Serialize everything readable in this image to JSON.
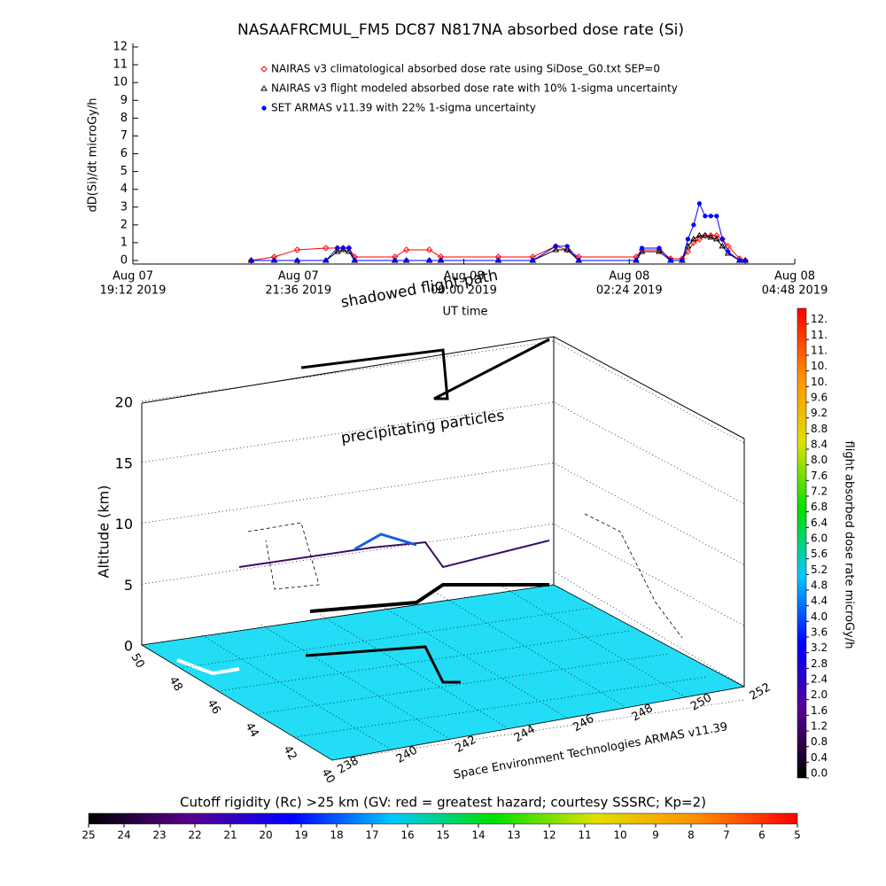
{
  "chart_data": [
    {
      "type": "line",
      "title": "NASAAFRCMUL_FM5 DC87 N817NA absorbed dose rate (Si)",
      "ylabel": "dD(Si)/dt microGy/h",
      "xlabel": "UT time",
      "xlim": [
        "2019-08-07T19:12",
        "2019-08-08T04:48"
      ],
      "xticks": [
        {
          "value": "2019-08-07T19:12",
          "label": [
            "Aug 07",
            "19:12 2019"
          ]
        },
        {
          "value": "2019-08-07T21:36",
          "label": [
            "Aug 07",
            "21:36 2019"
          ]
        },
        {
          "value": "2019-08-08T00:00",
          "label": [
            "Aug 08",
            "00:00 2019"
          ]
        },
        {
          "value": "2019-08-08T02:24",
          "label": [
            "Aug 08",
            "02:24 2019"
          ]
        },
        {
          "value": "2019-08-08T04:48",
          "label": [
            "Aug 08",
            "04:48 2019"
          ]
        }
      ],
      "ylim": [
        0,
        12
      ],
      "yticks": [
        0,
        1,
        2,
        3,
        4,
        5,
        6,
        7,
        8,
        9,
        10,
        11,
        12
      ],
      "x": [
        "2019-08-07T20:55",
        "2019-08-07T21:15",
        "2019-08-07T21:35",
        "2019-08-07T22:00",
        "2019-08-07T22:10",
        "2019-08-07T22:15",
        "2019-08-07T22:20",
        "2019-08-07T22:25",
        "2019-08-07T23:00",
        "2019-08-07T23:10",
        "2019-08-07T23:30",
        "2019-08-07T23:40",
        "2019-08-08T00:30",
        "2019-08-08T01:00",
        "2019-08-08T01:20",
        "2019-08-08T01:30",
        "2019-08-08T01:40",
        "2019-08-08T02:30",
        "2019-08-08T02:35",
        "2019-08-08T02:50",
        "2019-08-08T03:00",
        "2019-08-08T03:10",
        "2019-08-08T03:15",
        "2019-08-08T03:20",
        "2019-08-08T03:25",
        "2019-08-08T03:30",
        "2019-08-08T03:35",
        "2019-08-08T03:40",
        "2019-08-08T03:45",
        "2019-08-08T03:50",
        "2019-08-08T04:00",
        "2019-08-08T04:05"
      ],
      "series": [
        {
          "name": "NAIRAS v3 climatological absorbed dose rate using SiDose_G0.txt SEP=0",
          "color": "#ff0000",
          "marker": "diamond",
          "values": [
            0,
            0.2,
            0.6,
            0.7,
            0.7,
            0.7,
            0.7,
            0.2,
            0.2,
            0.6,
            0.6,
            0.2,
            0.2,
            0.2,
            0.8,
            0.6,
            0.2,
            0.2,
            0.6,
            0.6,
            0.1,
            0.1,
            0.5,
            1.0,
            1.2,
            1.4,
            1.4,
            1.4,
            1.2,
            0.8,
            0.1,
            0
          ]
        },
        {
          "name": "NAIRAS v3 flight modeled absorbed dose rate with 10% 1-sigma uncertainty",
          "color": "#000000",
          "marker": "triangle",
          "values": [
            0,
            0,
            0,
            0,
            0.5,
            0.6,
            0.5,
            0,
            0,
            0,
            0,
            0,
            0,
            0,
            0.6,
            0.6,
            0,
            0,
            0.5,
            0.5,
            0,
            0,
            0.8,
            1.2,
            1.4,
            1.4,
            1.3,
            1.2,
            0.8,
            0.4,
            0,
            0
          ]
        },
        {
          "name": "SET ARMAS v11.39 with 22% 1-sigma uncertainty",
          "color": "#0000ff",
          "marker": "circle",
          "values": [
            0,
            0,
            0,
            0,
            0.7,
            0.7,
            0.7,
            0,
            0,
            0,
            0,
            0,
            0,
            0,
            0.8,
            0.8,
            0,
            0,
            0.7,
            0.7,
            0,
            0,
            1.2,
            2.0,
            3.2,
            2.5,
            2.5,
            2.5,
            1.2,
            0.5,
            0,
            0
          ]
        }
      ]
    },
    {
      "type": "surface3d",
      "zlabel": "Altitude (km)",
      "zlim": [
        0,
        20
      ],
      "zticks": [
        0,
        5,
        10,
        15,
        20
      ],
      "ylim": [
        50,
        40
      ],
      "yticks": [
        50,
        48,
        46,
        44,
        42,
        40
      ],
      "xlim": [
        238,
        252
      ],
      "xticks": [
        238,
        240,
        242,
        244,
        246,
        248,
        250,
        252
      ],
      "annotations": [
        "shadowed flight path",
        "precipitating particles"
      ],
      "credit": "Space Environment Technologies ARMAS v11.39",
      "colors": [
        "#000000",
        "#5a0090",
        "#0000ff",
        "#00c8ff",
        "#00e000",
        "#e0e000",
        "#ff9000",
        "#ff0000"
      ],
      "dose_colorbar": {
        "label": "flight absorbed dose rate microGy/h",
        "lim": [
          0,
          12
        ],
        "ticks": [
          {
            "value": 0,
            "label": "0.0"
          },
          {
            "value": 0.4,
            "label": "0.4"
          },
          {
            "value": 0.8,
            "label": "0.8"
          },
          {
            "value": 1.2,
            "label": "1.2"
          },
          {
            "value": 1.6,
            "label": "1.6"
          },
          {
            "value": 2,
            "label": "2.0"
          },
          {
            "value": 2.4,
            "label": "2.4"
          },
          {
            "value": 2.8,
            "label": "2.8"
          },
          {
            "value": 3.2,
            "label": "3.2"
          },
          {
            "value": 3.6,
            "label": "3.6"
          },
          {
            "value": 4,
            "label": "4.0"
          },
          {
            "value": 4.4,
            "label": "4.4"
          },
          {
            "value": 4.8,
            "label": "4.8"
          },
          {
            "value": 5.2,
            "label": "5.2"
          },
          {
            "value": 5.6,
            "label": "5.6"
          },
          {
            "value": 6,
            "label": "6.0"
          },
          {
            "value": 6.4,
            "label": "6.4"
          },
          {
            "value": 6.8,
            "label": "6.8"
          },
          {
            "value": 7.2,
            "label": "7.2"
          },
          {
            "value": 7.6,
            "label": "7.6"
          },
          {
            "value": 8,
            "label": "8.0"
          },
          {
            "value": 8.4,
            "label": "8.4"
          },
          {
            "value": 8.8,
            "label": "8.8"
          },
          {
            "value": 9.2,
            "label": "9.2"
          },
          {
            "value": 9.6,
            "label": "9.6"
          },
          {
            "value": 10,
            "label": "10."
          },
          {
            "value": 10.4,
            "label": "10."
          },
          {
            "value": 10.8,
            "label": "11."
          },
          {
            "value": 11.2,
            "label": "11."
          },
          {
            "value": 11.6,
            "label": "12."
          }
        ]
      },
      "rigidity_colorbar": {
        "title": "Cutoff rigidity (Rc) >25 km (GV: red = greatest hazard; courtesy SSSRC; Kp=2)",
        "lim": [
          25,
          5
        ],
        "ticks": [
          25,
          24,
          23,
          22,
          21,
          20,
          19,
          18,
          17,
          16,
          15,
          14,
          13,
          12,
          11,
          10,
          9,
          8,
          7,
          6,
          5
        ]
      }
    }
  ]
}
